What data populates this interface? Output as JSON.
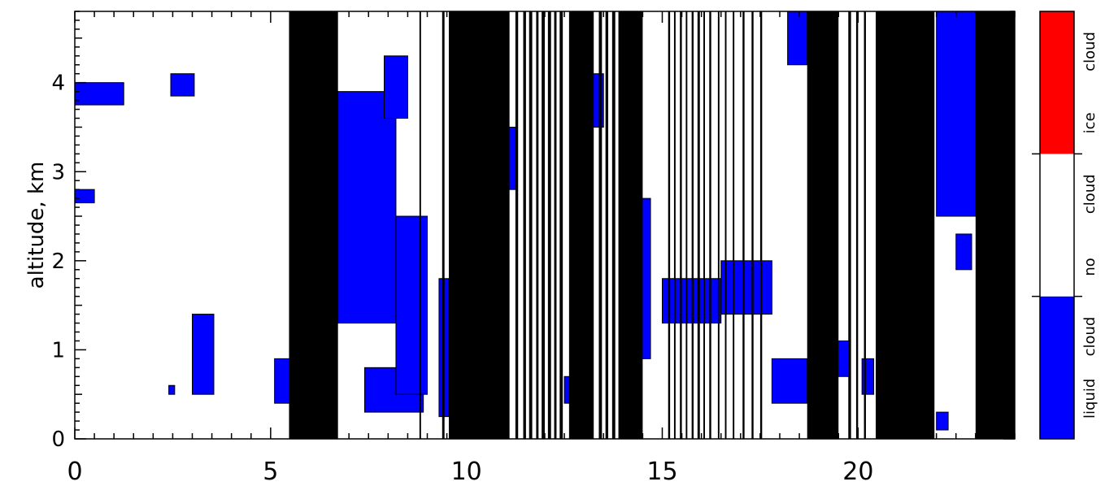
{
  "chart_data": {
    "type": "heatmap",
    "title": "",
    "xlabel": "",
    "ylabel": "altitude, km",
    "xlim": [
      0,
      24
    ],
    "ylim": [
      0,
      4.8
    ],
    "x_ticks": [
      0,
      5,
      10,
      15,
      20
    ],
    "y_ticks": [
      0,
      1,
      2,
      3,
      4
    ],
    "legend": {
      "placement": "right colorbar",
      "categories": [
        {
          "label": "liquid cloud",
          "color": "#0000ff"
        },
        {
          "label": "no cloud",
          "color": "#ffffff"
        },
        {
          "label": "ice cloud",
          "color": "#ff0000"
        }
      ]
    },
    "no_data_color": "#000000",
    "no_data_intervals_hours": [
      [
        5.47,
        6.72
      ],
      [
        8.8,
        8.84
      ],
      [
        9.38,
        9.44
      ],
      [
        9.55,
        11.1
      ],
      [
        11.25,
        11.32
      ],
      [
        11.45,
        11.52
      ],
      [
        11.6,
        11.68
      ],
      [
        11.78,
        11.84
      ],
      [
        11.92,
        12.0
      ],
      [
        12.08,
        12.16
      ],
      [
        12.24,
        12.3
      ],
      [
        12.38,
        12.46
      ],
      [
        12.62,
        13.25
      ],
      [
        13.38,
        13.46
      ],
      [
        13.55,
        13.62
      ],
      [
        13.72,
        13.8
      ],
      [
        13.88,
        14.5
      ],
      [
        15.15,
        15.2
      ],
      [
        15.3,
        15.34
      ],
      [
        15.45,
        15.5
      ],
      [
        15.6,
        15.64
      ],
      [
        15.75,
        15.8
      ],
      [
        15.9,
        15.96
      ],
      [
        16.05,
        16.09
      ],
      [
        16.2,
        16.25
      ],
      [
        16.42,
        16.46
      ],
      [
        16.6,
        16.64
      ],
      [
        16.8,
        16.84
      ],
      [
        17.05,
        17.1
      ],
      [
        17.28,
        17.33
      ],
      [
        17.5,
        17.55
      ],
      [
        18.7,
        19.5
      ],
      [
        19.75,
        19.82
      ],
      [
        19.95,
        20.0
      ],
      [
        20.15,
        20.2
      ],
      [
        20.45,
        21.95
      ],
      [
        23.0,
        24.0
      ]
    ],
    "liquid_cloud_regions": [
      {
        "t": [
          0.0,
          1.25
        ],
        "z": [
          3.75,
          4.0
        ]
      },
      {
        "t": [
          0.0,
          0.5
        ],
        "z": [
          2.65,
          2.8
        ]
      },
      {
        "t": [
          2.45,
          3.05
        ],
        "z": [
          3.85,
          4.1
        ]
      },
      {
        "t": [
          3.0,
          3.55
        ],
        "z": [
          0.5,
          1.4
        ]
      },
      {
        "t": [
          2.4,
          2.55
        ],
        "z": [
          0.5,
          0.6
        ]
      },
      {
        "t": [
          5.1,
          5.47
        ],
        "z": [
          0.4,
          0.9
        ]
      },
      {
        "t": [
          6.72,
          8.2
        ],
        "z": [
          1.3,
          3.9
        ]
      },
      {
        "t": [
          7.9,
          8.5
        ],
        "z": [
          3.6,
          4.3
        ]
      },
      {
        "t": [
          7.4,
          8.9
        ],
        "z": [
          0.3,
          0.8
        ]
      },
      {
        "t": [
          8.2,
          9.0
        ],
        "z": [
          0.5,
          2.5
        ]
      },
      {
        "t": [
          9.3,
          9.55
        ],
        "z": [
          0.25,
          1.8
        ]
      },
      {
        "t": [
          11.0,
          11.3
        ],
        "z": [
          2.8,
          3.5
        ]
      },
      {
        "t": [
          12.5,
          12.8
        ],
        "z": [
          0.4,
          0.7
        ]
      },
      {
        "t": [
          13.2,
          13.5
        ],
        "z": [
          3.5,
          4.1
        ]
      },
      {
        "t": [
          14.4,
          14.7
        ],
        "z": [
          0.9,
          2.7
        ]
      },
      {
        "t": [
          15.0,
          16.5
        ],
        "z": [
          1.3,
          1.8
        ]
      },
      {
        "t": [
          16.5,
          17.8
        ],
        "z": [
          1.4,
          2.0
        ]
      },
      {
        "t": [
          17.8,
          18.7
        ],
        "z": [
          0.4,
          0.9
        ]
      },
      {
        "t": [
          18.2,
          18.7
        ],
        "z": [
          4.2,
          4.8
        ]
      },
      {
        "t": [
          19.4,
          19.8
        ],
        "z": [
          0.7,
          1.1
        ]
      },
      {
        "t": [
          20.1,
          20.4
        ],
        "z": [
          0.5,
          0.9
        ]
      },
      {
        "t": [
          22.0,
          23.0
        ],
        "z": [
          2.5,
          4.8
        ]
      },
      {
        "t": [
          22.0,
          22.3
        ],
        "z": [
          0.1,
          0.3
        ]
      },
      {
        "t": [
          22.5,
          22.9
        ],
        "z": [
          1.9,
          2.3
        ]
      }
    ]
  }
}
